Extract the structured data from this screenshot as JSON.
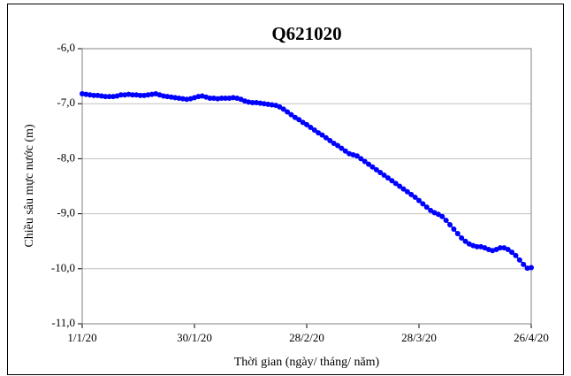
{
  "chart_data": {
    "type": "line",
    "title": "Q621020",
    "xlabel": "Thời gian (ngày/ tháng/ năm)",
    "ylabel": "Chiều sâu mực nước (m)",
    "categories": [
      "1/1/20",
      "2/1/20",
      "3/1/20",
      "4/1/20",
      "5/1/20",
      "6/1/20",
      "7/1/20",
      "8/1/20",
      "9/1/20",
      "10/1/20",
      "11/1/20",
      "12/1/20",
      "13/1/20",
      "14/1/20",
      "15/1/20",
      "16/1/20",
      "17/1/20",
      "18/1/20",
      "19/1/20",
      "20/1/20",
      "21/1/20",
      "22/1/20",
      "23/1/20",
      "24/1/20",
      "25/1/20",
      "26/1/20",
      "27/1/20",
      "28/1/20",
      "29/1/20",
      "30/1/20",
      "31/1/20",
      "1/2/20",
      "2/2/20",
      "3/2/20",
      "4/2/20",
      "5/2/20",
      "6/2/20",
      "7/2/20",
      "8/2/20",
      "9/2/20",
      "10/2/20",
      "11/2/20",
      "12/2/20",
      "13/2/20",
      "14/2/20",
      "15/2/20",
      "16/2/20",
      "17/2/20",
      "18/2/20",
      "19/2/20",
      "20/2/20",
      "21/2/20",
      "22/2/20",
      "23/2/20",
      "24/2/20",
      "25/2/20",
      "26/2/20",
      "27/2/20",
      "28/2/20",
      "29/2/20",
      "1/3/20",
      "2/3/20",
      "3/3/20",
      "4/3/20",
      "5/3/20",
      "6/3/20",
      "7/3/20",
      "8/3/20",
      "9/3/20",
      "10/3/20",
      "11/3/20",
      "12/3/20",
      "13/3/20",
      "14/3/20",
      "15/3/20",
      "16/3/20",
      "17/3/20",
      "18/3/20",
      "19/3/20",
      "20/3/20",
      "21/3/20",
      "22/3/20",
      "23/3/20",
      "24/3/20",
      "25/3/20",
      "26/3/20",
      "27/3/20",
      "28/3/20",
      "29/3/20",
      "30/3/20",
      "31/3/20",
      "1/4/20",
      "2/4/20",
      "3/4/20",
      "4/4/20",
      "5/4/20",
      "6/4/20",
      "7/4/20",
      "8/4/20",
      "9/4/20",
      "10/4/20",
      "11/4/20",
      "12/4/20",
      "13/4/20",
      "14/4/20",
      "15/4/20",
      "16/4/20",
      "17/4/20",
      "18/4/20",
      "19/4/20",
      "20/4/20",
      "21/4/20",
      "22/4/20",
      "23/4/20",
      "24/4/20",
      "25/4/20",
      "26/4/20"
    ],
    "series": [
      {
        "color": "#0000ff",
        "values": [
          -6.82,
          -6.83,
          -6.84,
          -6.85,
          -6.85,
          -6.86,
          -6.87,
          -6.87,
          -6.87,
          -6.86,
          -6.84,
          -6.84,
          -6.83,
          -6.84,
          -6.84,
          -6.85,
          -6.85,
          -6.84,
          -6.83,
          -6.82,
          -6.84,
          -6.86,
          -6.87,
          -6.88,
          -6.89,
          -6.9,
          -6.91,
          -6.92,
          -6.91,
          -6.89,
          -6.87,
          -6.86,
          -6.88,
          -6.9,
          -6.9,
          -6.91,
          -6.9,
          -6.9,
          -6.9,
          -6.89,
          -6.9,
          -6.92,
          -6.95,
          -6.97,
          -6.98,
          -6.98,
          -6.99,
          -7.0,
          -7.01,
          -7.02,
          -7.03,
          -7.06,
          -7.1,
          -7.15,
          -7.2,
          -7.25,
          -7.29,
          -7.34,
          -7.38,
          -7.43,
          -7.48,
          -7.53,
          -7.57,
          -7.62,
          -7.67,
          -7.72,
          -7.76,
          -7.81,
          -7.86,
          -7.91,
          -7.93,
          -7.95,
          -8.0,
          -8.05,
          -8.1,
          -8.15,
          -8.2,
          -8.25,
          -8.3,
          -8.35,
          -8.4,
          -8.45,
          -8.5,
          -8.55,
          -8.6,
          -8.65,
          -8.7,
          -8.76,
          -8.82,
          -8.88,
          -8.94,
          -8.98,
          -9.01,
          -9.05,
          -9.12,
          -9.2,
          -9.28,
          -9.36,
          -9.44,
          -9.5,
          -9.55,
          -9.58,
          -9.6,
          -9.6,
          -9.62,
          -9.65,
          -9.67,
          -9.65,
          -9.62,
          -9.62,
          -9.65,
          -9.7,
          -9.76,
          -9.84,
          -9.92,
          -9.99,
          -9.98
        ]
      }
    ],
    "xticks": [
      "1/1/20",
      "30/1/20",
      "28/2/20",
      "28/3/20",
      "26/4/20"
    ],
    "ylim": [
      -11,
      -6
    ],
    "yticks": [
      {
        "value": -11,
        "label": "-11,0"
      },
      {
        "value": -10,
        "label": "-10,0"
      },
      {
        "value": -9,
        "label": "-9,0"
      },
      {
        "value": -8,
        "label": "-8,0"
      },
      {
        "value": -7,
        "label": "-7,0"
      },
      {
        "value": -6,
        "label": "-6,0"
      }
    ],
    "grid": true
  }
}
